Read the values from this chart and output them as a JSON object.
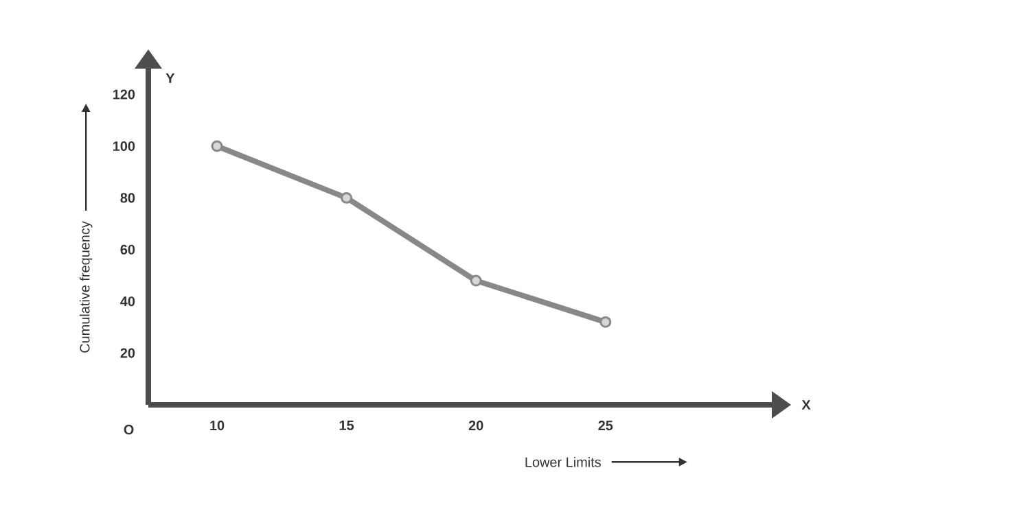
{
  "chart_data": {
    "type": "line",
    "xlabel": "Lower Limits",
    "ylabel": "Cumulative frequency",
    "categories": [
      "10",
      "15",
      "20",
      "25"
    ],
    "series": [
      {
        "color": "#888888",
        "values": [
          100,
          80,
          48,
          32
        ]
      }
    ],
    "ylim": [
      0,
      130
    ],
    "yticks": [
      20,
      40,
      60,
      80,
      100,
      120
    ],
    "marker": "circle",
    "line_style": "solid",
    "grid": false,
    "annotations": [
      "O",
      "Y",
      "X"
    ]
  }
}
